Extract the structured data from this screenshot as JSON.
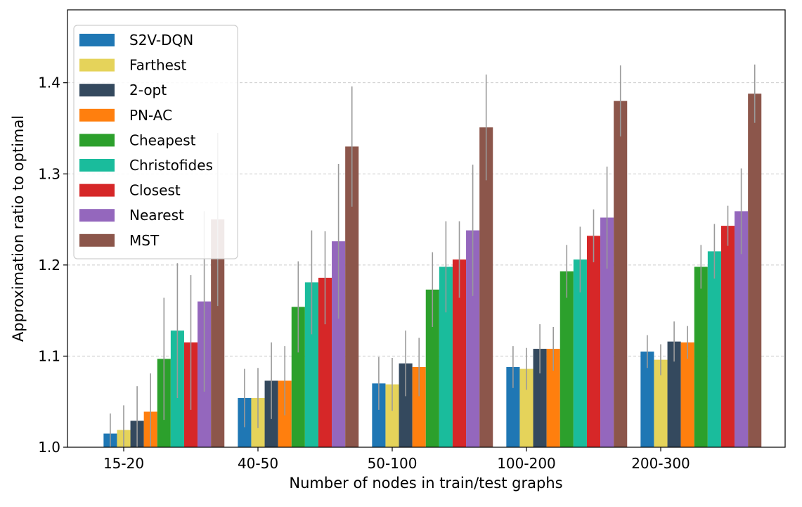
{
  "chart_data": {
    "type": "bar",
    "xlabel": "Number of nodes in train/test graphs",
    "ylabel": "Approximation ratio to optimal",
    "ylim": [
      1.0,
      1.48
    ],
    "yticks": [
      1.0,
      1.1,
      1.2,
      1.3,
      1.4
    ],
    "grid": "y-dashed",
    "legend_position": "top-left",
    "categories": [
      "15-20",
      "40-50",
      "50-100",
      "100-200",
      "200-300"
    ],
    "series": [
      {
        "name": "S2V-DQN",
        "color": "#1f77b4",
        "values": [
          1.015,
          1.054,
          1.07,
          1.088,
          1.105
        ],
        "errors": [
          0.022,
          0.032,
          0.029,
          0.023,
          0.018
        ]
      },
      {
        "name": "Farthest",
        "color": "#e5d35a",
        "values": [
          1.019,
          1.054,
          1.069,
          1.086,
          1.096
        ],
        "errors": [
          0.027,
          0.033,
          0.029,
          0.023,
          0.017
        ]
      },
      {
        "name": "2-opt",
        "color": "#34495e",
        "values": [
          1.029,
          1.073,
          1.092,
          1.108,
          1.116
        ],
        "errors": [
          0.038,
          0.042,
          0.036,
          0.027,
          0.022
        ]
      },
      {
        "name": "PN-AC",
        "color": "#ff7f0e",
        "values": [
          1.039,
          1.073,
          1.088,
          1.108,
          1.115
        ],
        "errors": [
          0.042,
          0.038,
          0.032,
          0.024,
          0.018
        ]
      },
      {
        "name": "Cheapest",
        "color": "#2ca02c",
        "values": [
          1.097,
          1.154,
          1.173,
          1.193,
          1.198
        ],
        "errors": [
          0.067,
          0.05,
          0.041,
          0.029,
          0.024
        ]
      },
      {
        "name": "Christofides",
        "color": "#1abc9c",
        "values": [
          1.128,
          1.181,
          1.198,
          1.206,
          1.215
        ],
        "errors": [
          0.074,
          0.057,
          0.05,
          0.036,
          0.03
        ]
      },
      {
        "name": "Closest",
        "color": "#d62728",
        "values": [
          1.115,
          1.186,
          1.206,
          1.232,
          1.243
        ],
        "errors": [
          0.074,
          0.051,
          0.042,
          0.029,
          0.022
        ]
      },
      {
        "name": "Nearest",
        "color": "#9467bd",
        "values": [
          1.16,
          1.226,
          1.238,
          1.252,
          1.259
        ],
        "errors": [
          0.099,
          0.085,
          0.072,
          0.056,
          0.047
        ]
      },
      {
        "name": "MST",
        "color": "#8c564b",
        "values": [
          1.25,
          1.33,
          1.351,
          1.38,
          1.388
        ],
        "errors": [
          0.095,
          0.066,
          0.058,
          0.039,
          0.032
        ]
      }
    ]
  }
}
